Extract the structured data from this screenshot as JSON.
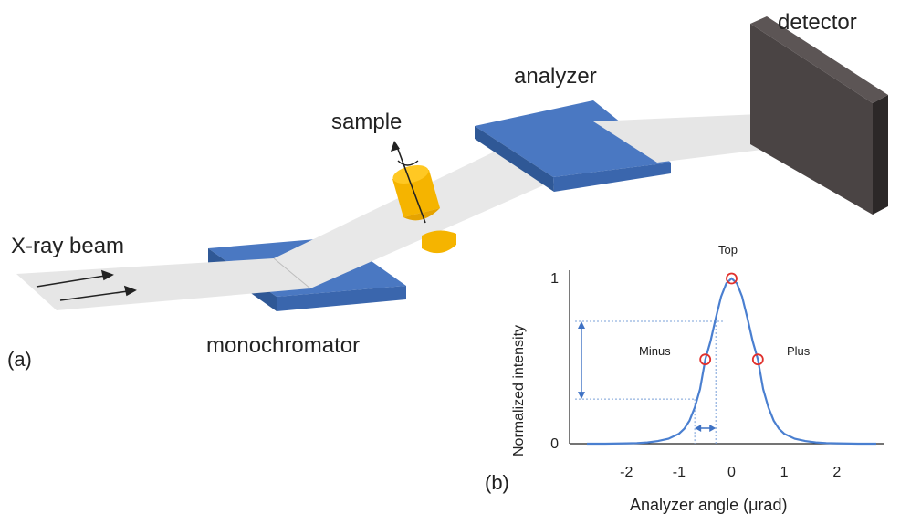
{
  "diagram": {
    "labels": {
      "xray_beam": "X-ray beam",
      "monochromator": "monochromator",
      "sample": "sample",
      "analyzer": "analyzer",
      "detector": "detector",
      "panel_a": "(a)",
      "panel_b": "(b)"
    },
    "colors": {
      "crystal": "#4a78c2",
      "crystal_side": "#3a66ad",
      "sample_body": "#f5b400",
      "beam": "#e6e6e6",
      "detector": "#4a4444",
      "curve": "#4a7fd0",
      "marker": "#e0302c"
    }
  },
  "chart_data": {
    "type": "line",
    "xlabel": "Analyzer angle (μrad)",
    "ylabel": "Normalized intensity",
    "xlim": [
      -2.75,
      2.75
    ],
    "ylim": [
      0,
      1
    ],
    "xticks": [
      "-2",
      "-1",
      "0",
      "1",
      "2"
    ],
    "yticks": [
      "0",
      "1"
    ],
    "annotations": {
      "top": "Top",
      "minus": "Minus",
      "plus": "Plus"
    },
    "series": [
      {
        "x": [
          -2.75,
          -2.4,
          -2.0,
          -1.8,
          -1.6,
          -1.4,
          -1.2,
          -1.0,
          -0.9,
          -0.8,
          -0.7,
          -0.6,
          -0.5,
          -0.4,
          -0.3,
          -0.2,
          -0.1,
          0.0,
          0.1,
          0.2,
          0.3,
          0.4,
          0.5,
          0.6,
          0.7,
          0.8,
          0.9,
          1.0,
          1.2,
          1.4,
          1.6,
          1.8,
          2.0,
          2.4,
          2.75
        ],
        "y": [
          0.0,
          0.0,
          0.002,
          0.004,
          0.008,
          0.016,
          0.03,
          0.06,
          0.09,
          0.14,
          0.22,
          0.33,
          0.51,
          0.62,
          0.76,
          0.89,
          0.97,
          1.0,
          0.97,
          0.89,
          0.76,
          0.62,
          0.51,
          0.33,
          0.22,
          0.14,
          0.09,
          0.06,
          0.03,
          0.016,
          0.008,
          0.004,
          0.002,
          0.0,
          0.0
        ]
      }
    ],
    "points": [
      {
        "name": "Top",
        "x": 0.0,
        "y": 1.0
      },
      {
        "name": "Minus",
        "x": -0.5,
        "y": 0.51
      },
      {
        "name": "Plus",
        "x": 0.5,
        "y": 0.51
      }
    ],
    "guides": {
      "y_high": 0.74,
      "y_low": 0.27,
      "x_left": -0.7,
      "x_right": -0.3
    }
  }
}
